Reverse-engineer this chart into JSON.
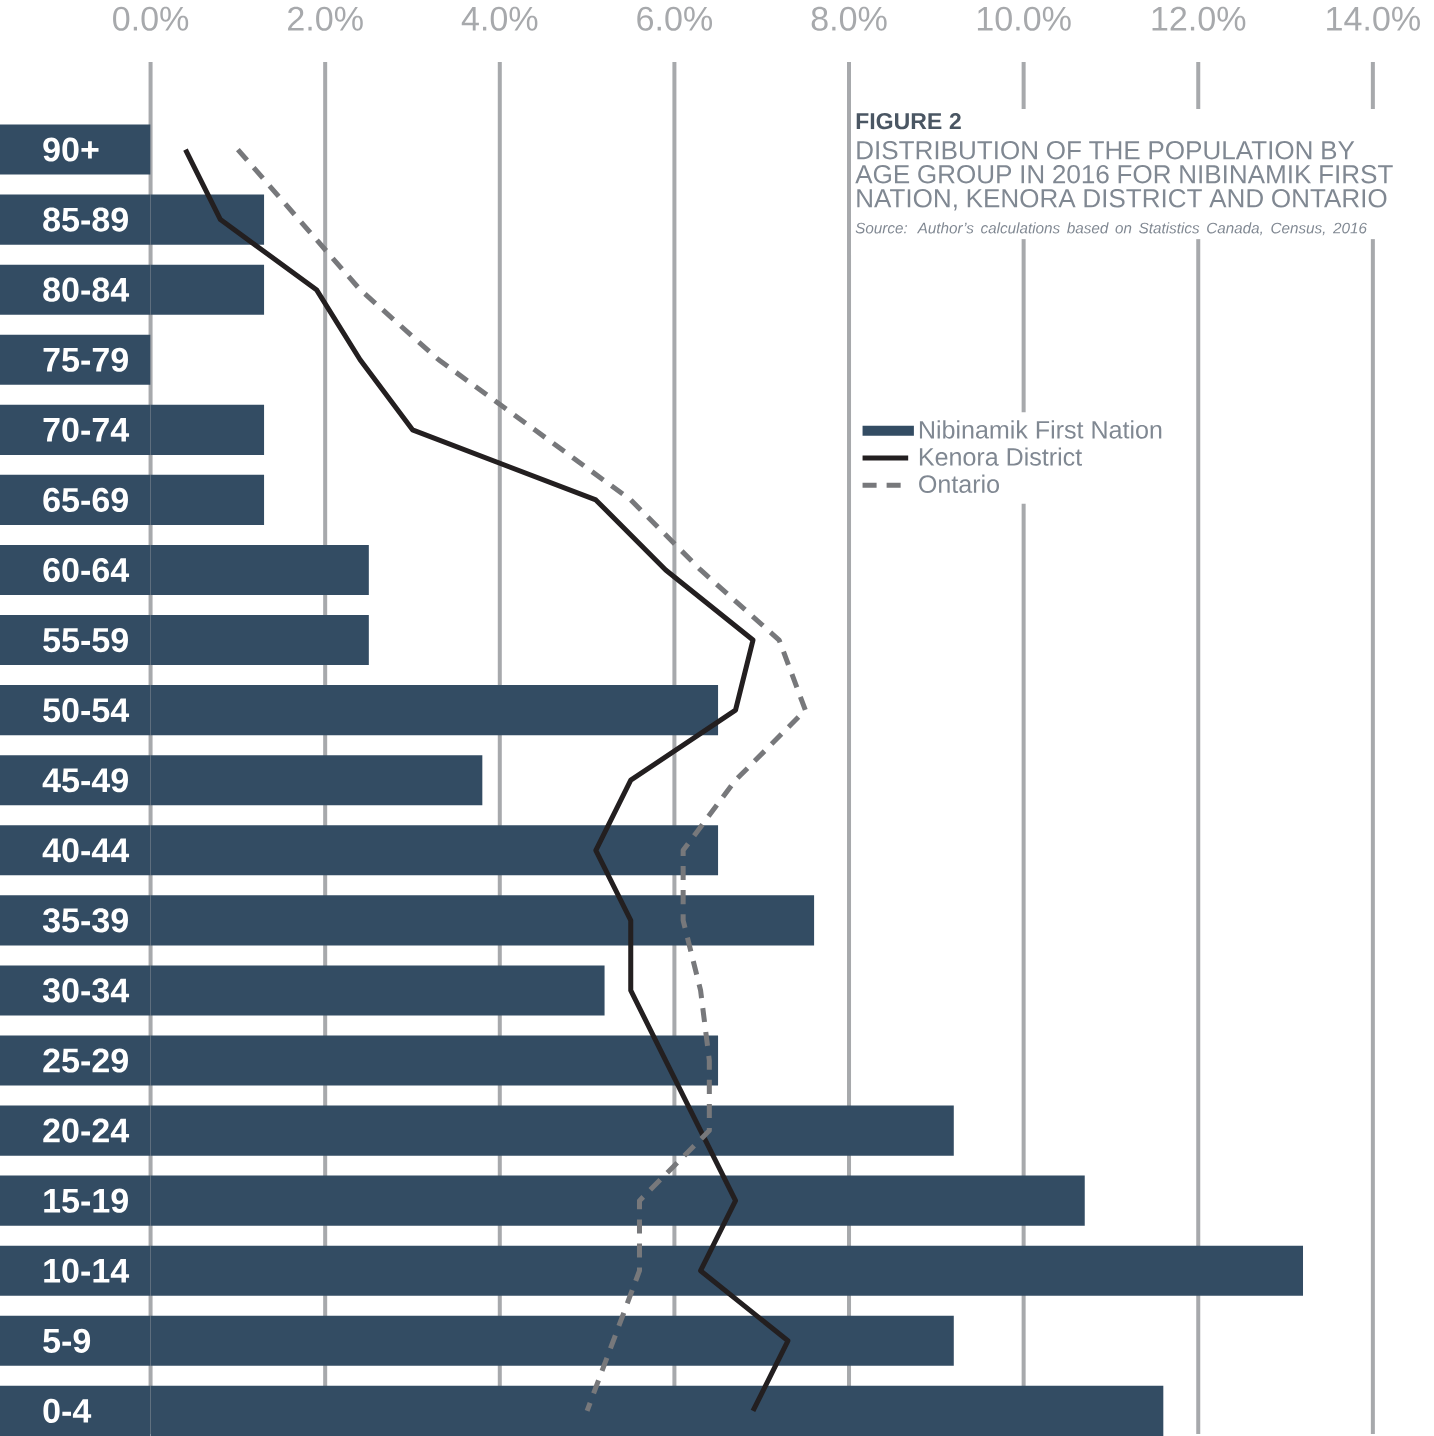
{
  "chart_data": {
    "type": "bar",
    "orientation": "horizontal",
    "title": "FIGURE 2",
    "subtitle": "DISTRIBUTION OF THE POPULATION BY AGE GROUP IN 2016 FOR NIBINAMIK FIRST NATION, KENORA DISTRICT AND ONTARIO",
    "annotations": [
      "Source: Author’s calculations based on Statistics Canada, Census, 2016"
    ],
    "categories": [
      "90+",
      "85-89",
      "80-84",
      "75-79",
      "70-74",
      "65-69",
      "60-64",
      "55-59",
      "50-54",
      "45-49",
      "40-44",
      "35-39",
      "30-34",
      "25-29",
      "20-24",
      "15-19",
      "10-14",
      "5-9",
      "0-4"
    ],
    "series": [
      {
        "name": "Nibinamik First Nation",
        "type": "bar",
        "color": "#334c63",
        "values": [
          0,
          1.3,
          1.3,
          0,
          1.3,
          1.3,
          2.5,
          2.5,
          6.5,
          3.8,
          6.5,
          7.6,
          5.2,
          6.5,
          9.2,
          10.7,
          13.2,
          9.2,
          11.6
        ]
      },
      {
        "name": "Kenora District",
        "type": "line",
        "line_style": "solid",
        "color": "#231f20",
        "values": [
          0.4,
          0.8,
          1.9,
          2.4,
          3.0,
          5.1,
          5.9,
          6.9,
          6.7,
          5.5,
          5.1,
          5.5,
          5.5,
          5.9,
          6.3,
          6.7,
          6.3,
          7.3,
          6.9
        ]
      },
      {
        "name": "Ontario",
        "type": "line",
        "line_style": "dashed",
        "color": "#77787b",
        "values": [
          1.0,
          1.7,
          2.4,
          3.3,
          4.4,
          5.5,
          6.3,
          7.2,
          7.5,
          6.7,
          6.1,
          6.1,
          6.3,
          6.4,
          6.4,
          5.6,
          5.6,
          5.3,
          5.0
        ]
      }
    ],
    "xlim": [
      -1.72,
      14.65
    ],
    "xticks": [
      {
        "value": 0,
        "label": "0.0%"
      },
      {
        "value": 2,
        "label": "2.0%"
      },
      {
        "value": 4,
        "label": "4.0%"
      },
      {
        "value": 6,
        "label": "6.0%"
      },
      {
        "value": 8,
        "label": "8.0%"
      },
      {
        "value": 10,
        "label": "10.0%"
      },
      {
        "value": 12,
        "label": "12.0%"
      },
      {
        "value": 14,
        "label": "14.0%"
      }
    ],
    "grid": "x",
    "legend": "top right"
  }
}
